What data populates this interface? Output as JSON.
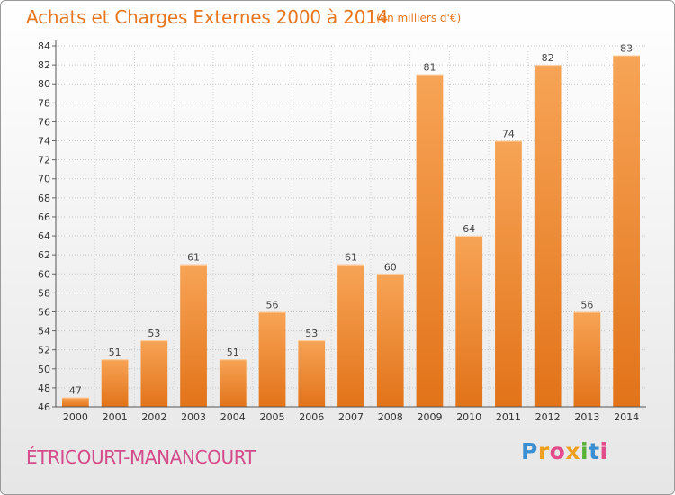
{
  "header": {
    "title": "Achats et Charges Externes 2000 à 2014",
    "subtitle": "(en milliers d'€)"
  },
  "footer": {
    "commune": "ÉTRICOURT-MANANCOURT",
    "logo_parts": [
      "P",
      "r",
      "o",
      "x",
      "i",
      "t",
      "i"
    ]
  },
  "colors": {
    "bar_light": "#f7a456",
    "bar_dark": "#e27319",
    "title": "#e8761f",
    "commune": "#d44a8a"
  },
  "chart_data": {
    "type": "bar",
    "title": "Achats et Charges Externes 2000 à 2014",
    "subtitle": "(en milliers d'€)",
    "xlabel": "",
    "ylabel": "",
    "categories": [
      "2000",
      "2001",
      "2002",
      "2003",
      "2004",
      "2005",
      "2006",
      "2007",
      "2008",
      "2009",
      "2010",
      "2011",
      "2012",
      "2013",
      "2014"
    ],
    "values": [
      47,
      51,
      53,
      61,
      51,
      56,
      53,
      61,
      60,
      81,
      64,
      74,
      82,
      56,
      83
    ],
    "ylim": [
      46,
      84
    ],
    "ytick_step": 2,
    "grid": true,
    "legend": "none"
  }
}
